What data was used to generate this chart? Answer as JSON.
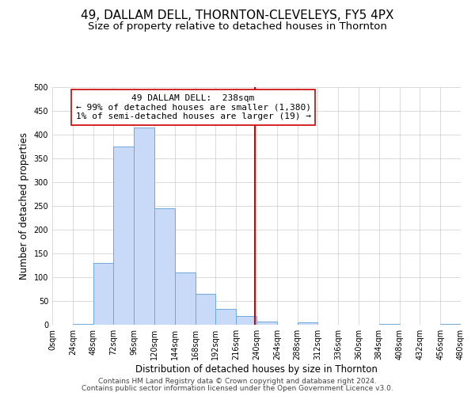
{
  "title": "49, DALLAM DELL, THORNTON-CLEVELEYS, FY5 4PX",
  "subtitle": "Size of property relative to detached houses in Thornton",
  "xlabel": "Distribution of detached houses by size in Thornton",
  "ylabel": "Number of detached properties",
  "footnote1": "Contains HM Land Registry data © Crown copyright and database right 2024.",
  "footnote2": "Contains public sector information licensed under the Open Government Licence v3.0.",
  "bin_edges": [
    0,
    24,
    48,
    72,
    96,
    120,
    144,
    168,
    192,
    216,
    240,
    264,
    288,
    312,
    336,
    360,
    384,
    408,
    432,
    456,
    480
  ],
  "bar_heights": [
    0,
    2,
    130,
    375,
    415,
    245,
    110,
    65,
    33,
    18,
    7,
    0,
    5,
    0,
    0,
    0,
    2,
    0,
    0,
    2
  ],
  "bar_facecolor": "#c9daf8",
  "bar_edgecolor": "#6fa8dc",
  "vline_x": 238,
  "vline_color": "#cc0000",
  "annotation_line1": "49 DALLAM DELL:  238sqm",
  "annotation_line2": "← 99% of detached houses are smaller (1,380)",
  "annotation_line3": "1% of semi-detached houses are larger (19) →",
  "ylim": [
    0,
    500
  ],
  "xlim": [
    0,
    480
  ],
  "background_color": "#ffffff",
  "grid_color": "#cccccc",
  "title_fontsize": 11,
  "subtitle_fontsize": 9.5,
  "axis_label_fontsize": 8.5,
  "tick_fontsize": 7,
  "annotation_fontsize": 8,
  "footnote_fontsize": 6.5
}
